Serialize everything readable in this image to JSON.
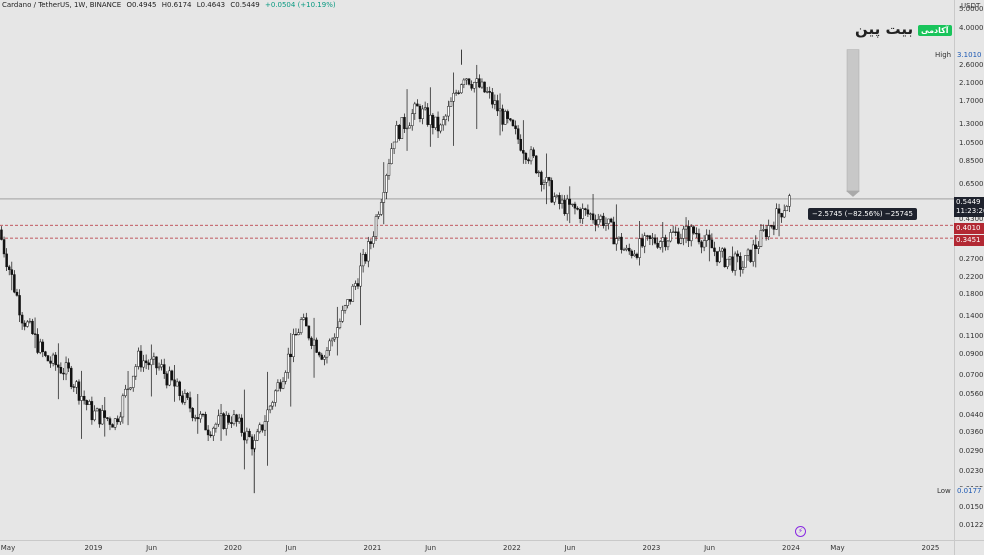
{
  "header": {
    "symbol": "Cardano / TetherUS, 1W, BINANCE",
    "open": "O0.4945",
    "high": "H0.6174",
    "low": "L0.4643",
    "close": "C0.5449",
    "change": "+0.0504 (+10.19%)",
    "change_color": "#089981"
  },
  "watermark": {
    "brand": "بیت پین",
    "badge": "آکادمی",
    "badge_color": "#19c45b"
  },
  "price_axis": {
    "unit": "USDT",
    "ticks": [
      "5.0000",
      "4.0000",
      "2.6000",
      "2.1000",
      "1.7000",
      "1.3000",
      "1.0500",
      "0.8500",
      "0.6500",
      "0.4300",
      "0.2700",
      "0.2200",
      "0.1800",
      "0.1400",
      "0.1100",
      "0.0900",
      "0.0700",
      "0.0560",
      "0.0440",
      "0.0360",
      "0.0290",
      "0.0230",
      "0.0185",
      "0.0150",
      "0.0122"
    ]
  },
  "time_axis": {
    "ticks": [
      "May",
      "2019",
      "Jun",
      "2020",
      "Jun",
      "2021",
      "Jun",
      "2022",
      "Jun",
      "2023",
      "Jun",
      "2024",
      "May",
      "2025"
    ]
  },
  "markers": {
    "high_label": "High",
    "high_value": "3.1010",
    "low_label": "Low",
    "low_value": "0.0177",
    "current_price": "0.5449",
    "countdown": "11:23:26",
    "level_1": "0.4010",
    "level_2": "0.3451",
    "level_color": "#b22833"
  },
  "measure_label": "−2.5745 (−82.56%) −25745",
  "chart_data": {
    "type": "candlestick",
    "title": "Cardano / TetherUS, 1W, BINANCE",
    "xlabel": "",
    "ylabel": "",
    "y_scale": "log",
    "ylim": [
      0.0105,
      5.4
    ],
    "x": [
      "2018-05",
      "2018-07",
      "2018-09",
      "2018-11",
      "2019-01",
      "2019-03",
      "2019-05",
      "2019-07",
      "2019-09",
      "2019-11",
      "2020-01",
      "2020-03",
      "2020-05",
      "2020-07",
      "2020-09",
      "2020-11",
      "2021-01",
      "2021-03",
      "2021-05",
      "2021-07",
      "2021-09",
      "2021-11",
      "2022-01",
      "2022-03",
      "2022-05",
      "2022-07",
      "2022-09",
      "2022-11",
      "2023-01",
      "2023-03",
      "2023-05",
      "2023-07",
      "2023-09",
      "2023-11",
      "2024-01"
    ],
    "close": [
      0.38,
      0.14,
      0.085,
      0.072,
      0.045,
      0.041,
      0.085,
      0.075,
      0.052,
      0.038,
      0.043,
      0.031,
      0.062,
      0.13,
      0.088,
      0.16,
      0.33,
      1.15,
      1.55,
      1.22,
      2.35,
      1.85,
      1.25,
      0.85,
      0.52,
      0.47,
      0.43,
      0.29,
      0.33,
      0.36,
      0.37,
      0.28,
      0.25,
      0.38,
      0.5449
    ],
    "high": [
      0.42,
      0.18,
      0.11,
      0.095,
      0.06,
      0.05,
      0.1,
      0.1,
      0.065,
      0.05,
      0.05,
      0.07,
      0.075,
      0.16,
      0.12,
      0.19,
      0.41,
      1.48,
      2.45,
      1.7,
      3.101,
      2.25,
      1.6,
      1.2,
      0.75,
      0.55,
      0.6,
      0.45,
      0.4,
      0.43,
      0.45,
      0.33,
      0.3,
      0.41,
      0.6174
    ],
    "low": [
      0.33,
      0.12,
      0.08,
      0.038,
      0.03,
      0.038,
      0.04,
      0.07,
      0.04,
      0.032,
      0.033,
      0.0177,
      0.03,
      0.06,
      0.075,
      0.1,
      0.15,
      0.9,
      1.0,
      1.0,
      1.0,
      1.35,
      1.0,
      0.7,
      0.4,
      0.42,
      0.4,
      0.24,
      0.26,
      0.32,
      0.33,
      0.22,
      0.24,
      0.25,
      0.4643
    ]
  }
}
